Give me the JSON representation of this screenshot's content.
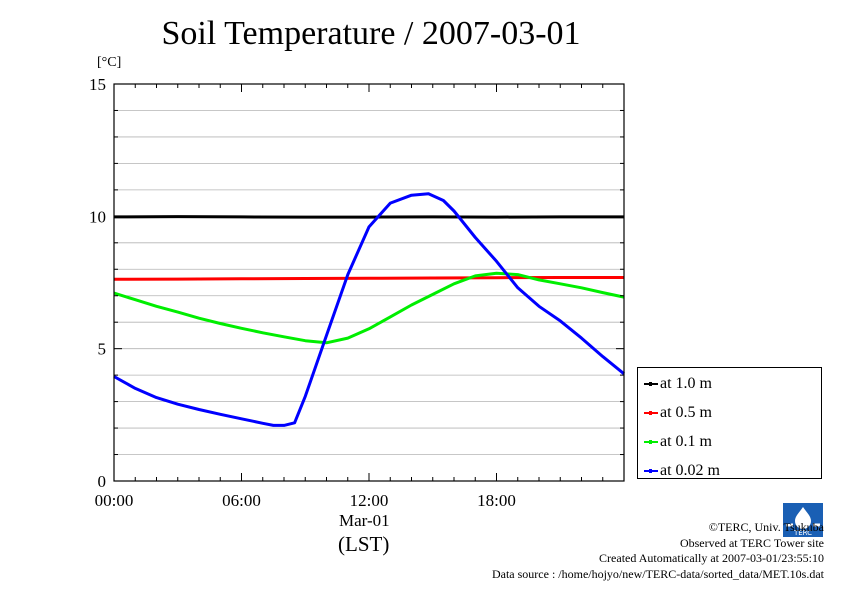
{
  "title": "Soil Temperature / 2007-03-01",
  "unit": "[°C]",
  "chart_data": {
    "type": "line",
    "title": "Soil Temperature / 2007-03-01",
    "ylabel": "[°C]",
    "ylim": [
      0,
      15
    ],
    "yticks": [
      "0",
      "5",
      "10",
      "15"
    ],
    "xlim_hours": [
      0,
      24
    ],
    "xticks": [
      "00:00",
      "06:00",
      "12:00",
      "18:00"
    ],
    "xtick_hours": [
      0,
      6,
      12,
      18
    ],
    "date_label": "Mar-01",
    "xlabel": "(LST)",
    "grid": "horizontal",
    "legend_position": "right-bottom",
    "series": [
      {
        "name": "at 1.0 m",
        "color": "#000000",
        "points": [
          [
            0,
            9.98
          ],
          [
            3,
            9.99
          ],
          [
            6,
            9.98
          ],
          [
            9,
            9.97
          ],
          [
            12,
            9.97
          ],
          [
            15,
            9.98
          ],
          [
            18,
            9.97
          ],
          [
            21,
            9.98
          ],
          [
            24,
            9.98
          ]
        ]
      },
      {
        "name": "at 0.5 m",
        "color": "#ff0000",
        "points": [
          [
            0,
            7.62
          ],
          [
            3,
            7.63
          ],
          [
            6,
            7.64
          ],
          [
            9,
            7.65
          ],
          [
            12,
            7.66
          ],
          [
            15,
            7.67
          ],
          [
            18,
            7.68
          ],
          [
            21,
            7.69
          ],
          [
            24,
            7.69
          ]
        ]
      },
      {
        "name": "at 0.1 m",
        "color": "#00ee00",
        "points": [
          [
            0,
            7.1
          ],
          [
            1,
            6.85
          ],
          [
            2,
            6.6
          ],
          [
            3,
            6.38
          ],
          [
            4,
            6.15
          ],
          [
            5,
            5.95
          ],
          [
            6,
            5.77
          ],
          [
            7,
            5.6
          ],
          [
            8,
            5.45
          ],
          [
            9,
            5.3
          ],
          [
            10,
            5.22
          ],
          [
            11,
            5.4
          ],
          [
            12,
            5.75
          ],
          [
            13,
            6.2
          ],
          [
            14,
            6.65
          ],
          [
            15,
            7.05
          ],
          [
            16,
            7.45
          ],
          [
            17,
            7.75
          ],
          [
            18,
            7.85
          ],
          [
            19,
            7.8
          ],
          [
            20,
            7.6
          ],
          [
            21,
            7.45
          ],
          [
            22,
            7.3
          ],
          [
            23,
            7.12
          ],
          [
            24,
            6.95
          ]
        ]
      },
      {
        "name": "at 0.02 m",
        "color": "#0000ff",
        "points": [
          [
            0,
            3.95
          ],
          [
            1,
            3.5
          ],
          [
            2,
            3.15
          ],
          [
            3,
            2.9
          ],
          [
            4,
            2.7
          ],
          [
            5,
            2.52
          ],
          [
            6,
            2.35
          ],
          [
            7,
            2.18
          ],
          [
            7.5,
            2.1
          ],
          [
            8,
            2.1
          ],
          [
            8.5,
            2.2
          ],
          [
            9,
            3.2
          ],
          [
            10,
            5.5
          ],
          [
            11,
            7.8
          ],
          [
            12,
            9.6
          ],
          [
            13,
            10.5
          ],
          [
            14,
            10.8
          ],
          [
            14.8,
            10.85
          ],
          [
            15.5,
            10.6
          ],
          [
            16,
            10.2
          ],
          [
            17,
            9.2
          ],
          [
            18,
            8.3
          ],
          [
            19,
            7.3
          ],
          [
            20,
            6.6
          ],
          [
            21,
            6.05
          ],
          [
            22,
            5.4
          ],
          [
            23,
            4.7
          ],
          [
            24,
            4.05
          ]
        ]
      }
    ]
  },
  "credits": {
    "copyright": "©TERC, Univ. Tsukuba",
    "observed": "Observed at TERC Tower site",
    "created": "Created Automatically at 2007-03-01/23:55:10",
    "source": "Data source : /home/hojyo/new/TERC-data/sorted_data/MET.10s.dat"
  }
}
